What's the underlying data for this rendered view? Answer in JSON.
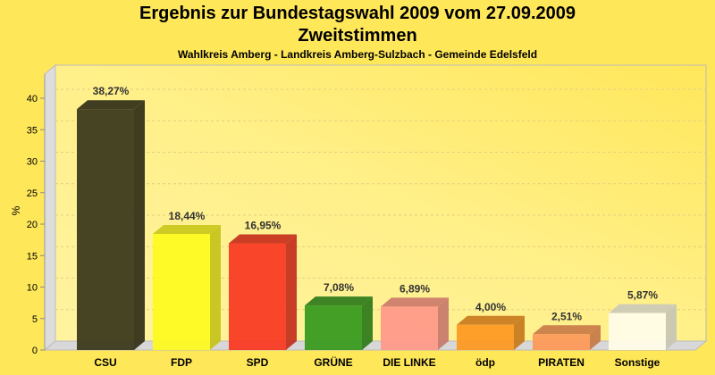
{
  "chart_data": {
    "type": "bar",
    "title": "Ergebnis zur Bundestagswahl 2009 vom 27.09.2009",
    "subtitle": "Zweitstimmen",
    "subsubtitle": "Wahlkreis Amberg - Landkreis Amberg-Sulzbach - Gemeinde Edelsfeld",
    "xlabel": "",
    "ylabel": "%",
    "ylim": [
      0,
      40
    ],
    "yticks": [
      "0",
      "5",
      "10",
      "15",
      "20",
      "25",
      "30",
      "35",
      "40"
    ],
    "categories": [
      "CSU",
      "FDP",
      "SPD",
      "GRÜNE",
      "DIE LINKE",
      "ödp",
      "PIRATEN",
      "Sonstige"
    ],
    "values": [
      38.27,
      18.44,
      16.95,
      7.08,
      6.89,
      4.0,
      2.51,
      5.87
    ],
    "labels": [
      "38,27%",
      "18,44%",
      "16,95%",
      "7,08%",
      "6,89%",
      "4,00%",
      "2,51%",
      "5,87%"
    ],
    "colors": [
      "#3d3a1e",
      "#fdfa22",
      "#f93b24",
      "#3a9a20",
      "#ff9a8a",
      "#fd9a24",
      "#fd9a5a",
      "#fffce8"
    ],
    "grid": true
  }
}
